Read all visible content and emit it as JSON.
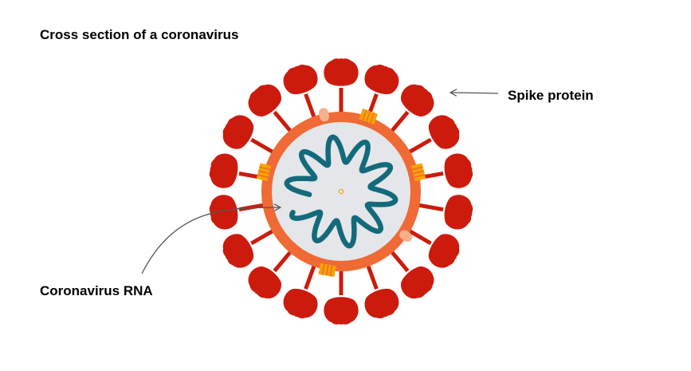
{
  "title": "Cross section of a coronavirus",
  "labels": {
    "spike": "Spike protein",
    "rna": "Coronavirus RNA"
  },
  "colors": {
    "spike": "#cc1b0d",
    "envelope": "#ef6a35",
    "interior": "#e4e6e9",
    "rna": "#136a7a",
    "membrane_protein": "#f7a300",
    "envelope_protein": "#f6b08a",
    "annotation_line": "#555555"
  },
  "structure": {
    "spike_count": 18
  }
}
